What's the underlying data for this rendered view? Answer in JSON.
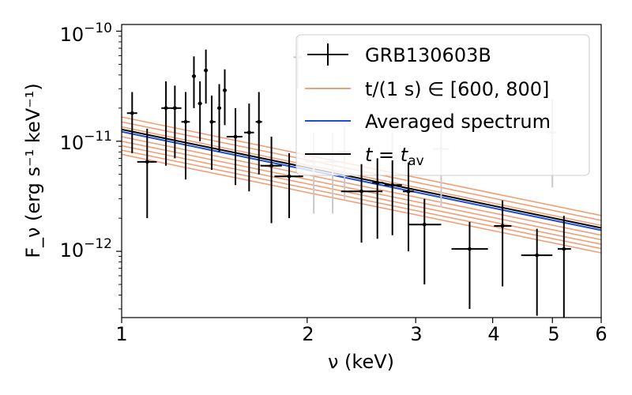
{
  "chart_data": {
    "type": "scatter",
    "xscale": "log",
    "yscale": "log",
    "xlim": [
      1,
      6
    ],
    "ylim": [
      2.5e-13,
      1.15e-10
    ],
    "xlabel": "ν (keV)",
    "ylabel": "F_ν (erg s⁻¹ keV⁻¹)",
    "xticks": [
      {
        "value": 1,
        "label": "1"
      },
      {
        "value": 2,
        "label": "2"
      },
      {
        "value": 3,
        "label": "3"
      },
      {
        "value": 4,
        "label": "4"
      },
      {
        "value": 5,
        "label": "5"
      },
      {
        "value": 6,
        "label": "6"
      }
    ],
    "yticks": [
      {
        "value": 1e-10,
        "mantissa": "10",
        "exp": "−10"
      },
      {
        "value": 1e-11,
        "mantissa": "10",
        "exp": "−11"
      },
      {
        "value": 1e-12,
        "mantissa": "10",
        "exp": "−12"
      }
    ],
    "legend": {
      "position": "upper-right",
      "entries": [
        {
          "kind": "errorbar",
          "label": "GRB130603B"
        },
        {
          "kind": "orange-line",
          "label": "t/(1 s) ∈ [600, 800]"
        },
        {
          "kind": "blue-line",
          "label": "Averaged spectrum"
        },
        {
          "kind": "black-line",
          "label_main": "t",
          "label_eq": " = ",
          "label_sym": "t",
          "label_sub": "av"
        }
      ]
    },
    "colors": {
      "data": "#000000",
      "faded": "#c8c8c8",
      "orange": "#f0a078",
      "blue": "#1f4fd0",
      "black": "#000000",
      "axis": "#000000"
    },
    "series": [
      {
        "name": "t/(1 s) ∈ [600, 800]",
        "kind": "orange-lines",
        "slope": -1.15,
        "amplitudes_at_1keV": [
          7.6e-12,
          8.3e-12,
          9.1e-12,
          1e-11,
          1.1e-11,
          1.22e-11,
          1.35e-11,
          1.5e-11,
          1.66e-11
        ]
      },
      {
        "name": "Averaged spectrum",
        "kind": "blue-line",
        "slope": -1.15,
        "amplitude_at_1keV": 1.22e-11
      },
      {
        "name": "t = t_av",
        "kind": "black-line",
        "slope": -1.15,
        "amplitude_at_1keV": 1.28e-11
      },
      {
        "name": "GRB130603B",
        "kind": "errorbar",
        "points": [
          {
            "x": 1.04,
            "xlo": 1.02,
            "xhi": 1.06,
            "y": 1.8e-11,
            "ylo": 7.8e-12,
            "yhi": 2.8e-11
          },
          {
            "x": 1.1,
            "xlo": 1.06,
            "xhi": 1.14,
            "y": 6.5e-12,
            "ylo": 2e-12,
            "yhi": 1.3e-11
          },
          {
            "x": 1.18,
            "xlo": 1.16,
            "xhi": 1.2,
            "y": 2e-11,
            "ylo": 6e-12,
            "yhi": 3.5e-11
          },
          {
            "x": 1.22,
            "xlo": 1.2,
            "xhi": 1.25,
            "y": 2e-11,
            "ylo": 7e-12,
            "yhi": 3.2e-11
          },
          {
            "x": 1.27,
            "xlo": 1.25,
            "xhi": 1.29,
            "y": 1.5e-11,
            "ylo": 4.5e-12,
            "yhi": 2.8e-11
          },
          {
            "x": 1.31,
            "xlo": 1.3,
            "xhi": 1.32,
            "y": 3.9e-11,
            "ylo": 2e-11,
            "yhi": 5.9e-11
          },
          {
            "x": 1.34,
            "xlo": 1.33,
            "xhi": 1.35,
            "y": 2.2e-11,
            "ylo": 1e-11,
            "yhi": 3.5e-11
          },
          {
            "x": 1.37,
            "xlo": 1.36,
            "xhi": 1.38,
            "y": 4.4e-11,
            "ylo": 2.2e-11,
            "yhi": 6.8e-11
          },
          {
            "x": 1.4,
            "xlo": 1.39,
            "xhi": 1.42,
            "y": 1.5e-11,
            "ylo": 5.5e-12,
            "yhi": 2.6e-11
          },
          {
            "x": 1.44,
            "xlo": 1.43,
            "xhi": 1.45,
            "y": 2e-11,
            "ylo": 8e-12,
            "yhi": 3.3e-11
          },
          {
            "x": 1.47,
            "xlo": 1.46,
            "xhi": 1.48,
            "y": 2.9e-11,
            "ylo": 1.4e-11,
            "yhi": 4.5e-11
          },
          {
            "x": 1.53,
            "xlo": 1.48,
            "xhi": 1.57,
            "y": 1.1e-11,
            "ylo": 4e-12,
            "yhi": 2e-11
          },
          {
            "x": 1.61,
            "xlo": 1.58,
            "xhi": 1.64,
            "y": 1.2e-11,
            "ylo": 3.5e-12,
            "yhi": 2.2e-11
          },
          {
            "x": 1.67,
            "xlo": 1.65,
            "xhi": 1.69,
            "y": 1.5e-11,
            "ylo": 5e-12,
            "yhi": 2.8e-11
          },
          {
            "x": 1.75,
            "xlo": 1.68,
            "xhi": 1.82,
            "y": 6e-12,
            "ylo": 1.8e-12,
            "yhi": 1.1e-11
          },
          {
            "x": 1.87,
            "xlo": 1.77,
            "xhi": 1.97,
            "y": 4.8e-12,
            "ylo": 2e-12,
            "yhi": 7.8e-12
          },
          {
            "x": 2.45,
            "xlo": 2.27,
            "xhi": 2.65,
            "y": 3.5e-12,
            "ylo": 1.2e-12,
            "yhi": 6.2e-12
          },
          {
            "x": 2.6,
            "xlo": 2.55,
            "xhi": 2.66,
            "y": 4.2e-12,
            "ylo": 1.3e-12,
            "yhi": 7e-12
          },
          {
            "x": 2.75,
            "xlo": 2.67,
            "xhi": 2.85,
            "y": 4e-12,
            "ylo": 1.4e-12,
            "yhi": 6.7e-12
          },
          {
            "x": 2.92,
            "xlo": 2.86,
            "xhi": 2.98,
            "y": 3.5e-12,
            "ylo": 1e-12,
            "yhi": 6.4e-12
          },
          {
            "x": 3.1,
            "xlo": 2.92,
            "xhi": 3.3,
            "y": 1.75e-12,
            "ylo": 5e-13,
            "yhi": 3e-12
          },
          {
            "x": 3.67,
            "xlo": 3.43,
            "xhi": 3.93,
            "y": 1.05e-12,
            "ylo": 3e-13,
            "yhi": 1.85e-12
          },
          {
            "x": 4.15,
            "xlo": 4.02,
            "xhi": 4.29,
            "y": 1.7e-12,
            "ylo": 4.8e-13,
            "yhi": 2.9e-12
          },
          {
            "x": 4.72,
            "xlo": 4.45,
            "xhi": 5.0,
            "y": 9.2e-13,
            "ylo": 2.6e-13,
            "yhi": 1.6e-12
          },
          {
            "x": 5.22,
            "xlo": 5.1,
            "xhi": 5.36,
            "y": 1.05e-12,
            "ylo": 2.4e-13,
            "yhi": 2.1e-12
          }
        ]
      },
      {
        "name": "GRB130603B (behind legend)",
        "kind": "errorbar-faded",
        "points": [
          {
            "x": 1.93,
            "xlo": 1.9,
            "xhi": 1.96,
            "y": 5.8e-11,
            "ylo": 3e-11,
            "yhi": 9e-11
          },
          {
            "x": 2.05,
            "xlo": 1.98,
            "xhi": 2.12,
            "y": 6.5e-12,
            "ylo": 2.2e-12,
            "yhi": 1.2e-11
          },
          {
            "x": 2.2,
            "xlo": 2.13,
            "xhi": 2.27,
            "y": 6.5e-12,
            "ylo": 2.2e-12,
            "yhi": 1.2e-11
          },
          {
            "x": 2.3,
            "xlo": 2.25,
            "xhi": 2.35,
            "y": 8e-12,
            "ylo": 3e-12,
            "yhi": 1.4e-11
          },
          {
            "x": 2.75,
            "xlo": 2.7,
            "xhi": 2.8,
            "y": 7e-12,
            "ylo": 2.5e-12,
            "yhi": 1.2e-11
          },
          {
            "x": 3.3,
            "xlo": 3.2,
            "xhi": 3.4,
            "y": 8.5e-12,
            "ylo": 2.5e-12,
            "yhi": 1.6e-11
          },
          {
            "x": 5.0,
            "xlo": 4.92,
            "xhi": 5.08,
            "y": 1.2e-11,
            "ylo": 3.8e-12,
            "yhi": 2.4e-11
          }
        ]
      }
    ]
  }
}
